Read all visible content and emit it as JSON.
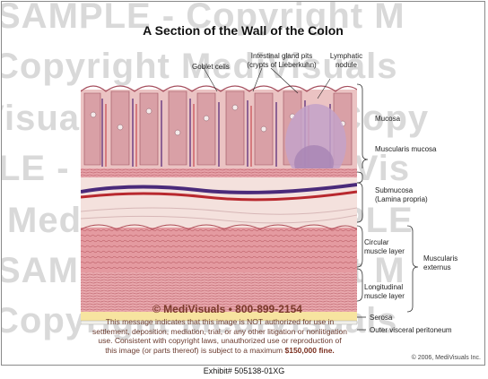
{
  "title": "A Section of the Wall of the Colon",
  "watermark": {
    "rows": [
      "SAMPLE - Copyright M",
      "Copyright MediVisuals",
      "Visuals - SAMPLE - Copy",
      "LE - Copyright MediVis",
      "MediVisuals - SAMPLE",
      "SAMPLE - Copyright M",
      "Copyright MediVisuals"
    ]
  },
  "labels": {
    "goblet_cells": "Goblet cells",
    "intestinal_gland_pits": "Intestinal gland pits\n(crypts of Lieberkuhn)",
    "lymphatic_nodule": "Lymphatic\nnodule",
    "mucosa": "Mucosa",
    "muscularis_mucosa": "Muscularis mucosa",
    "submucosa": "Submucosa\n(Lamina propria)",
    "circular_muscle_layer": "Circular\nmuscle layer",
    "longitudinal_muscle_layer": "Longitudinal\nmuscle layer",
    "muscularis_externus": "Muscularis\nexternus",
    "serosa": "Serosa",
    "outer_visceral_peritoneum": "Outer visceral peritoneum"
  },
  "overlay": {
    "copyright_line": "© MediVisuals • 800-899-2154",
    "message": "This message indicates that this image is NOT authorized for use in settlement, deposition, mediation, trial, or any other litigation or nonlitigation use.  Consistent with copyright laws, unauthorized use or reproduction of this image (or parts thereof) is subject to a maximum",
    "fine": "$150,000 fine."
  },
  "credit": "© 2006, MediVisuals Inc.",
  "exhibit": "Exhibit# 505138-01XG"
}
